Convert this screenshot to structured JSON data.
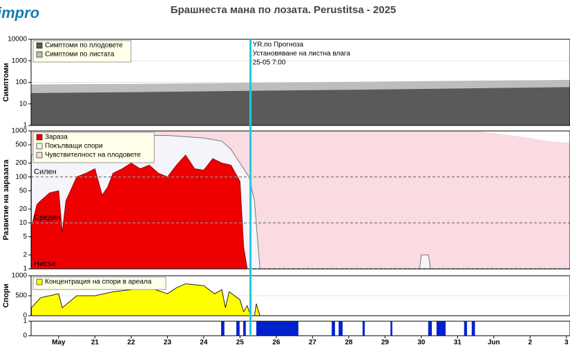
{
  "header": {
    "logo": "impro",
    "title": "Брашнеста мана по лозата.  Perustitsa - 2025"
  },
  "forecast": {
    "x": 25.29,
    "lines": [
      "YR.по Прогноза",
      "Установяване на листна влага",
      "25-05 7:00"
    ]
  },
  "chart_data": [
    {
      "type": "area",
      "ylabel": "Симптоми",
      "log_scale": true,
      "grid": true,
      "xlim": [
        19.24,
        34.1
      ],
      "ylim": [
        1,
        10000
      ],
      "yticks": [
        1,
        10,
        100,
        1000,
        10000
      ],
      "x": [
        19.25,
        22,
        25,
        28,
        31,
        34.1
      ],
      "series": [
        {
          "name": "Симптоми по листата",
          "color": "#bdbdbd",
          "values": [
            80,
            85,
            95,
            105,
            118,
            130
          ]
        },
        {
          "name": "Симптоми по плодовете",
          "color": "#5a5a5a",
          "values": [
            32,
            35,
            40,
            45,
            52,
            60
          ]
        }
      ]
    },
    {
      "type": "area",
      "ylabel": "Развитие на заразата",
      "log_scale": true,
      "grid": false,
      "xlim": [
        19.24,
        34.1
      ],
      "ylim": [
        1,
        1000
      ],
      "yticks": [
        1,
        2,
        5,
        10,
        20,
        50,
        100,
        200,
        500,
        1000
      ],
      "levels": [
        {
          "value": 100,
          "label": "Силен"
        },
        {
          "value": 10,
          "label": "Среден"
        },
        {
          "value": 1,
          "label": "Нисък"
        }
      ],
      "series": [
        {
          "name": "Чувствителност на плодовете",
          "color": "#f9dbe1",
          "x": [
            19.25,
            31.5,
            32,
            32.5,
            33,
            33.5,
            34.1
          ],
          "values": [
            1000,
            1000,
            900,
            800,
            700,
            600,
            550
          ]
        },
        {
          "name": "Покълващи спори",
          "color": "#f6f4fb",
          "x": [
            19.25,
            19.5,
            20,
            20.5,
            21,
            21.5,
            22,
            22.5,
            23,
            23.5,
            24,
            24.5,
            24.75,
            25,
            25.25,
            25.4,
            25.55,
            29.95,
            30,
            30.2,
            30.25,
            34.1
          ],
          "values": [
            300,
            350,
            200,
            300,
            500,
            700,
            800,
            800,
            800,
            750,
            700,
            600,
            400,
            200,
            100,
            30,
            1,
            1,
            2,
            2,
            1,
            1
          ]
        },
        {
          "name": "Зараза",
          "color": "#ee0000",
          "x": [
            19.25,
            19.4,
            19.5,
            19.75,
            20,
            20.1,
            20.2,
            20.5,
            20.75,
            21,
            21.2,
            21.35,
            21.5,
            21.75,
            22,
            22.25,
            22.5,
            22.75,
            23,
            23.25,
            23.5,
            23.75,
            24,
            24.25,
            24.5,
            24.75,
            25,
            25.1,
            25.2
          ],
          "values": [
            8,
            25,
            30,
            45,
            50,
            6,
            30,
            100,
            120,
            150,
            40,
            60,
            120,
            150,
            200,
            150,
            180,
            120,
            100,
            180,
            300,
            150,
            140,
            250,
            200,
            180,
            80,
            3,
            1
          ]
        }
      ]
    },
    {
      "type": "area",
      "ylabel": "Спори",
      "log_scale": false,
      "grid": true,
      "xlim": [
        19.24,
        34.1
      ],
      "ylim": [
        0,
        1000
      ],
      "yticks": [
        0,
        500,
        1000
      ],
      "series": [
        {
          "name": "Концентрация на спори в ареала",
          "color": "#ffff00",
          "x": [
            19.25,
            19.5,
            20,
            20.1,
            20.5,
            21,
            21.5,
            22,
            22.5,
            23,
            23.25,
            23.5,
            24,
            24.3,
            24.5,
            24.6,
            24.7,
            25,
            25.1,
            25.2,
            25.3,
            25.4,
            25.45,
            25.55
          ],
          "values": [
            200,
            450,
            550,
            200,
            500,
            500,
            600,
            650,
            700,
            550,
            700,
            800,
            750,
            550,
            650,
            200,
            600,
            400,
            100,
            250,
            0,
            0,
            300,
            0
          ]
        }
      ]
    },
    {
      "type": "periods",
      "log_scale": false,
      "grid": true,
      "color": "#0022cc",
      "xlim": [
        19.24,
        34.1
      ],
      "ylim": [
        0,
        1
      ],
      "yticks": [
        0,
        1
      ],
      "periods": [
        [
          24.48,
          24.57
        ],
        [
          24.9,
          24.99
        ],
        [
          25.09,
          25.16
        ],
        [
          25.45,
          26.61
        ],
        [
          27.53,
          27.62
        ],
        [
          27.72,
          27.83
        ],
        [
          28.38,
          28.44
        ],
        [
          29.15,
          29.2
        ],
        [
          30.19,
          30.29
        ],
        [
          30.42,
          30.67
        ],
        [
          31.18,
          31.26
        ],
        [
          31.39,
          31.48
        ]
      ],
      "xticks": [
        {
          "value": 20,
          "label": "May"
        },
        21,
        22,
        23,
        24,
        25,
        26,
        27,
        28,
        29,
        30,
        31,
        {
          "value": 32,
          "label": "Jun"
        },
        {
          "value": 33,
          "label": "2"
        },
        {
          "value": 34,
          "label": "3"
        }
      ]
    }
  ]
}
